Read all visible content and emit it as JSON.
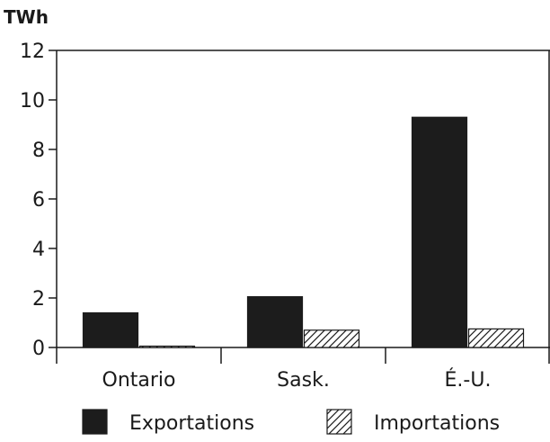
{
  "chart_data": {
    "type": "bar",
    "title": "",
    "unit_label": "TWh",
    "xlabel": "",
    "ylabel": "",
    "categories": [
      "Ontario",
      "Sask.",
      "É.-U."
    ],
    "series": [
      {
        "name": "Exportations",
        "values": [
          1.4,
          2.05,
          9.3
        ],
        "pattern": "solid",
        "color": "#1c1c1c"
      },
      {
        "name": "Importations",
        "values": [
          0.05,
          0.7,
          0.75
        ],
        "pattern": "hatch",
        "color": "#1c1c1c"
      }
    ],
    "ylim": [
      0,
      12
    ],
    "yticks": [
      "0",
      "2",
      "4",
      "6",
      "8",
      "10",
      "12"
    ],
    "grid": false,
    "legend_position": "bottom"
  }
}
